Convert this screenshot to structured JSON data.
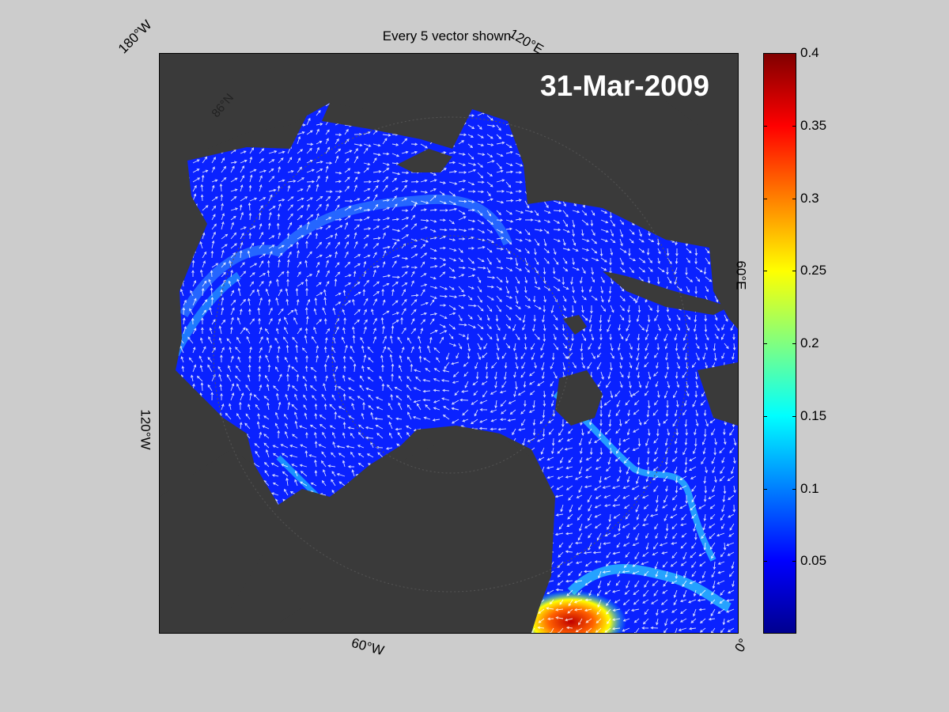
{
  "title": "Every 5 vector shown",
  "date": "31-Mar-2009",
  "lon_labels": {
    "top_left": "180°W",
    "top_right": "120°E",
    "right": "60°E",
    "left": "120°W",
    "bottom": "60°W",
    "bottom_right": "0°"
  },
  "lat_labels": {
    "north": "86°N"
  },
  "colorbar": {
    "min": 0,
    "max": 0.4,
    "ticks": [
      "0.4",
      "0.35",
      "0.3",
      "0.25",
      "0.2",
      "0.15",
      "0.1",
      "0.05"
    ],
    "colormap": "jet"
  },
  "colors": {
    "background": "#cccccc",
    "land": "#3a3a3a",
    "ice": "#0a1fff",
    "shelf": "#808080",
    "vectors": "#ffffff"
  }
}
